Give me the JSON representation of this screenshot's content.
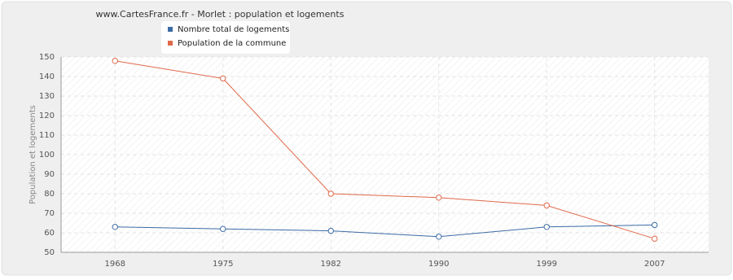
{
  "chart_data": {
    "type": "line",
    "title": "www.CartesFrance.fr - Morlet : population et logements",
    "y_label": "Population et logements",
    "categories": [
      "1968",
      "1975",
      "1982",
      "1990",
      "1999",
      "2007"
    ],
    "series": [
      {
        "name": "Nombre total de logements",
        "color": "#3b6ba5",
        "values": [
          63,
          62,
          61,
          58,
          63,
          64
        ]
      },
      {
        "name": "Population de la commune",
        "color": "#e0694a",
        "values": [
          148,
          139,
          80,
          78,
          74,
          57
        ]
      }
    ],
    "ylim": [
      50,
      150
    ],
    "yticks": [
      50,
      60,
      70,
      80,
      90,
      100,
      110,
      120,
      130,
      140,
      150
    ],
    "grid": true
  }
}
